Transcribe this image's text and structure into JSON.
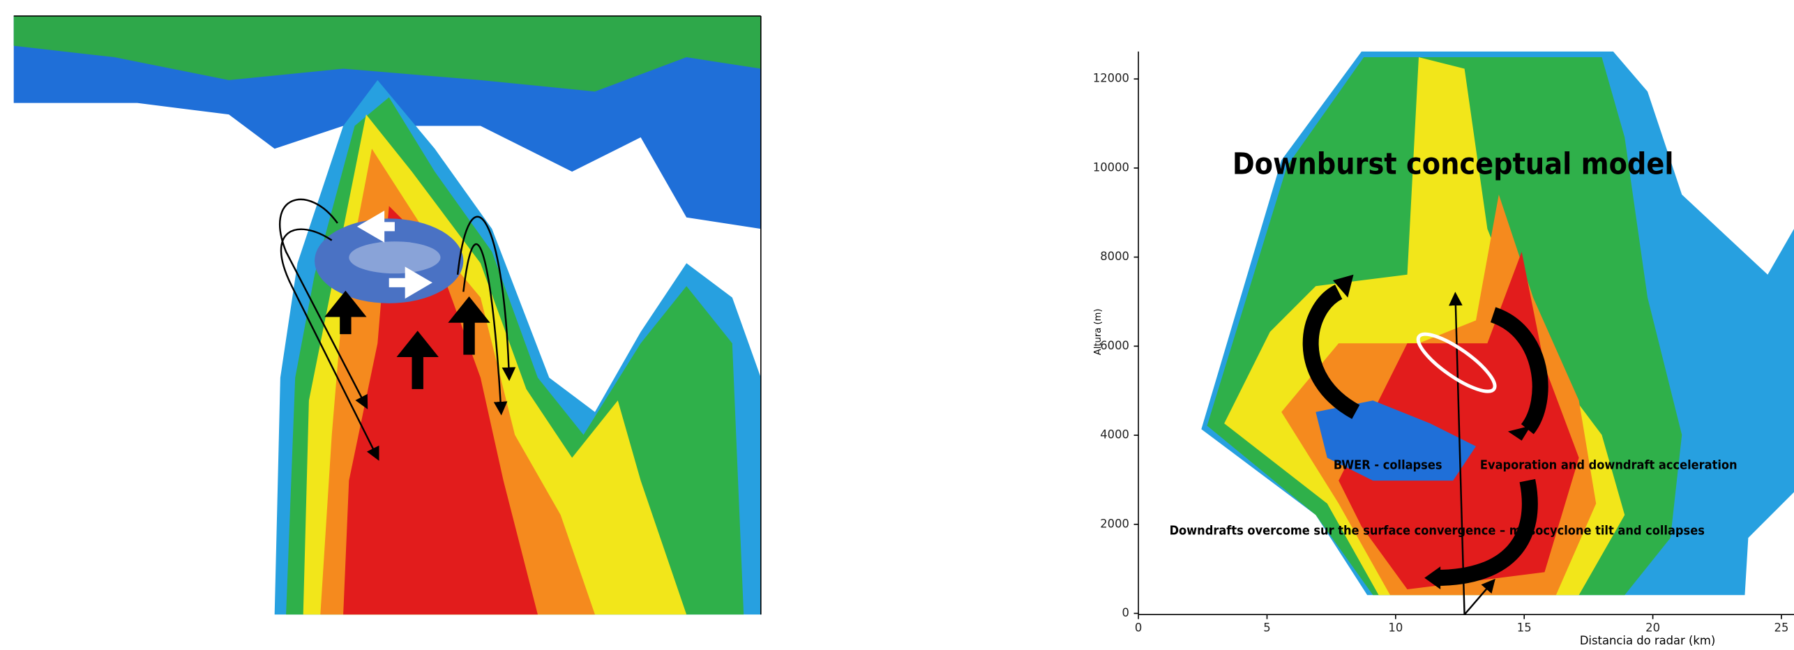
{
  "right_panel": {
    "annotations": [
      "Downburst conceptual model",
      "BWER - collapses",
      "Evaporation and downdraft acceleration",
      "Downdrafts overcome sur the surface convergence – mesocyclone tilt and collapses"
    ],
    "xlabel": "Distancia do radar (km)",
    "ylabel": "Altura (m)",
    "xlim": [
      0,
      25
    ],
    "xticks": [
      0,
      5,
      10,
      15,
      20,
      25
    ],
    "ylim": [
      0,
      12000
    ],
    "yticks": [
      0,
      2000,
      4000,
      6000,
      8000,
      10000,
      12000
    ]
  }
}
